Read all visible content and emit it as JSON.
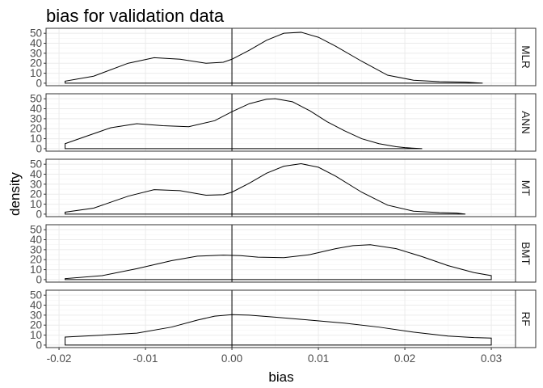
{
  "chart_data": {
    "type": "area",
    "title": "bias for validation data",
    "xlabel": "bias",
    "ylabel": "density",
    "xlim": [
      -0.0215,
      0.0328
    ],
    "ylim": [
      -2.5,
      55
    ],
    "x_ticks": [
      -0.02,
      -0.01,
      0.0,
      0.01,
      0.02,
      0.03
    ],
    "x_tick_labels": [
      "-0.02",
      "-0.01",
      "0.00",
      "0.01",
      "0.02",
      "0.03"
    ],
    "y_ticks": [
      0,
      10,
      20,
      30,
      40,
      50
    ],
    "y_tick_labels": [
      "0",
      "10",
      "20",
      "30",
      "40",
      "50"
    ],
    "reference_line_x": 0.0,
    "facet_direction": "rows",
    "grid": true,
    "panels": [
      {
        "name": "MLR",
        "x": [
          -0.0193,
          -0.016,
          -0.012,
          -0.009,
          -0.006,
          -0.003,
          -0.001,
          0.0,
          0.002,
          0.004,
          0.006,
          0.008,
          0.01,
          0.012,
          0.015,
          0.018,
          0.021,
          0.024,
          0.027,
          0.029
        ],
        "y": [
          2,
          7,
          20,
          25.5,
          24,
          20,
          21,
          24,
          33,
          43,
          50,
          51,
          46,
          37,
          22,
          8,
          3,
          1.5,
          1,
          0
        ]
      },
      {
        "name": "ANN",
        "x": [
          -0.0193,
          -0.017,
          -0.014,
          -0.011,
          -0.008,
          -0.005,
          -0.002,
          0.0,
          0.002,
          0.004,
          0.005,
          0.007,
          0.009,
          0.011,
          0.013,
          0.015,
          0.017,
          0.019,
          0.02,
          0.022
        ],
        "y": [
          5,
          12,
          21,
          25,
          23,
          22,
          28,
          37,
          45,
          49.5,
          50,
          47,
          38,
          27,
          18,
          10,
          5,
          2,
          1,
          0
        ]
      },
      {
        "name": "MT",
        "x": [
          -0.0193,
          -0.016,
          -0.012,
          -0.009,
          -0.006,
          -0.003,
          -0.001,
          0.0,
          0.002,
          0.004,
          0.006,
          0.008,
          0.01,
          0.012,
          0.015,
          0.018,
          0.021,
          0.024,
          0.026,
          0.027
        ],
        "y": [
          2,
          6,
          18,
          24.5,
          23.5,
          19,
          19.5,
          22,
          31,
          41,
          48,
          50.5,
          47,
          38,
          22,
          9,
          3,
          1.5,
          1,
          0
        ]
      },
      {
        "name": "BMT",
        "x": [
          -0.0193,
          -0.015,
          -0.011,
          -0.007,
          -0.004,
          -0.001,
          0.001,
          0.003,
          0.006,
          0.009,
          0.012,
          0.014,
          0.016,
          0.019,
          0.022,
          0.025,
          0.028,
          0.03
        ],
        "y": [
          1,
          4,
          11,
          19,
          23.5,
          24.5,
          24,
          22.5,
          22,
          25,
          31,
          34,
          35,
          31,
          23,
          14,
          7,
          4
        ]
      },
      {
        "name": "RF",
        "x": [
          -0.0193,
          -0.015,
          -0.011,
          -0.007,
          -0.004,
          -0.002,
          0.0,
          0.002,
          0.005,
          0.009,
          0.013,
          0.017,
          0.021,
          0.025,
          0.028,
          0.03
        ],
        "y": [
          8,
          10,
          12,
          18,
          25,
          29,
          30.5,
          30,
          28,
          25,
          22,
          18,
          13,
          9,
          7.5,
          7
        ]
      }
    ]
  }
}
